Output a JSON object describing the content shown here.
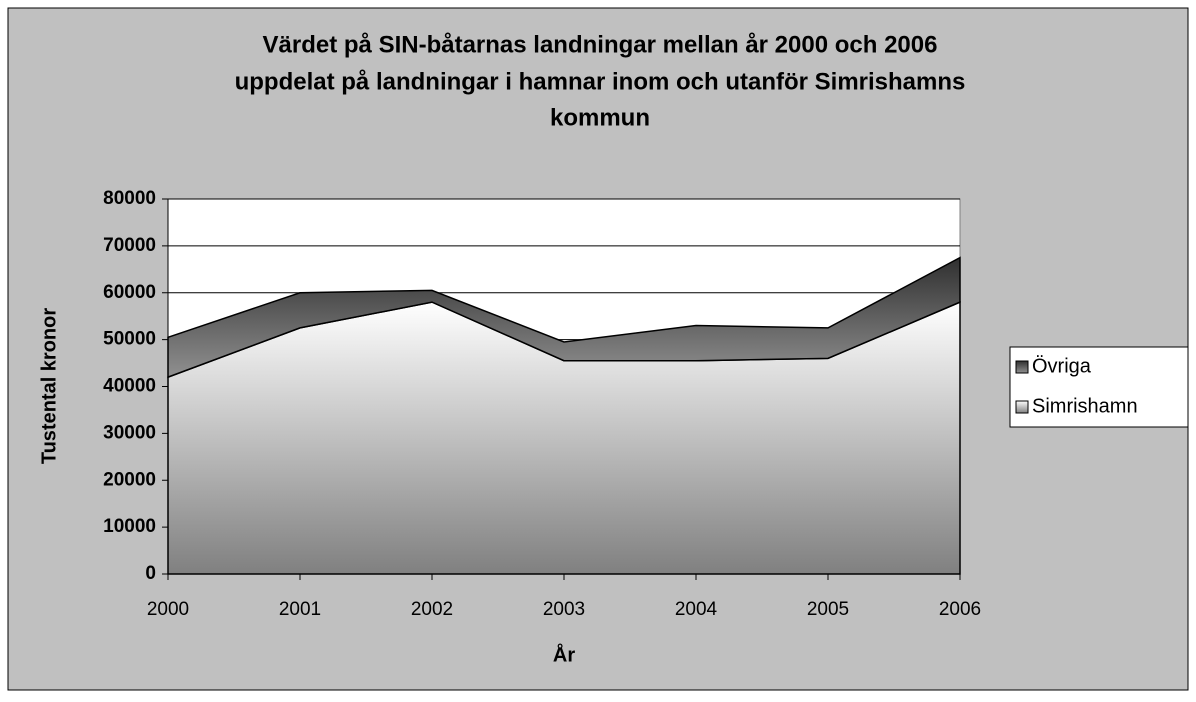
{
  "chart_data": {
    "type": "stacked_area",
    "title": [
      "Värdet på SIN-båtarnas landningar mellan år 2000 och 2006",
      "uppdelat på landningar i hamnar inom och utanför Simrishamns",
      "kommun"
    ],
    "x_label": "År",
    "y_label": "Tustental kronor",
    "categories": [
      "2000",
      "2001",
      "2002",
      "2003",
      "2004",
      "2005",
      "2006"
    ],
    "series": [
      {
        "name": "Simrishamn",
        "color": "#808080",
        "values": [
          42000,
          52500,
          58000,
          45500,
          45500,
          46000,
          58000
        ]
      },
      {
        "name": "Övriga",
        "color": "#303030",
        "values": [
          8500,
          7500,
          2500,
          4000,
          7500,
          6500,
          9500
        ]
      }
    ],
    "ylim": [
      0,
      80000
    ],
    "yticks": [
      0,
      10000,
      20000,
      30000,
      40000,
      50000,
      60000,
      70000,
      80000
    ],
    "grid": true,
    "legend": "right"
  }
}
